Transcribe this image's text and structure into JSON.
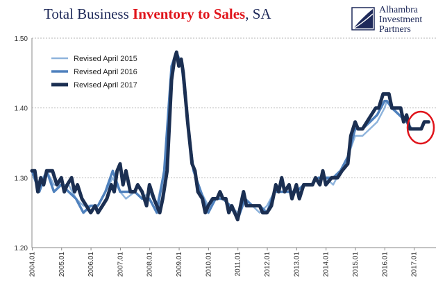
{
  "chart_data": {
    "type": "line",
    "title_parts": {
      "pre": "Total Business ",
      "highlight": "Inventory to Sales",
      "post": ", SA"
    },
    "xlabel": "",
    "ylabel": "",
    "ylim": [
      1.2,
      1.5
    ],
    "yticks": [
      "1.20",
      "1.30",
      "1.40",
      "1.50"
    ],
    "xticks": [
      "2004.01",
      "2005.01",
      "2006.01",
      "2007.01",
      "2008.01",
      "2009.01",
      "2010.01",
      "2011.01",
      "2012.01",
      "2013.01",
      "2014.01",
      "2015.01",
      "2016.01",
      "2017.01"
    ],
    "xlim": [
      2004.0,
      2017.75
    ],
    "grid": "horizontal dashed",
    "legend_position": "top-left",
    "annotation": "red circle around latest 2017 values",
    "series": [
      {
        "name": "Revised April 2015",
        "color": "#8fb4dc",
        "width": 2.5,
        "points": [
          [
            2004.0,
            1.31
          ],
          [
            2004.25,
            1.29
          ],
          [
            2004.5,
            1.31
          ],
          [
            2004.75,
            1.29
          ],
          [
            2005.0,
            1.29
          ],
          [
            2005.25,
            1.29
          ],
          [
            2005.5,
            1.27
          ],
          [
            2005.75,
            1.26
          ],
          [
            2006.0,
            1.26
          ],
          [
            2006.25,
            1.26
          ],
          [
            2006.5,
            1.28
          ],
          [
            2006.75,
            1.3
          ],
          [
            2007.0,
            1.28
          ],
          [
            2007.2,
            1.27
          ],
          [
            2007.5,
            1.28
          ],
          [
            2007.75,
            1.27
          ],
          [
            2008.0,
            1.28
          ],
          [
            2008.25,
            1.26
          ],
          [
            2008.5,
            1.31
          ],
          [
            2008.75,
            1.46
          ],
          [
            2008.92,
            1.48
          ],
          [
            2009.1,
            1.46
          ],
          [
            2009.3,
            1.38
          ],
          [
            2009.5,
            1.31
          ],
          [
            2009.75,
            1.28
          ],
          [
            2010.0,
            1.26
          ],
          [
            2010.25,
            1.27
          ],
          [
            2010.5,
            1.27
          ],
          [
            2010.75,
            1.26
          ],
          [
            2011.0,
            1.25
          ],
          [
            2011.25,
            1.27
          ],
          [
            2011.5,
            1.26
          ],
          [
            2011.75,
            1.25
          ],
          [
            2012.0,
            1.26
          ],
          [
            2012.25,
            1.28
          ],
          [
            2012.5,
            1.28
          ],
          [
            2012.75,
            1.28
          ],
          [
            2013.0,
            1.28
          ],
          [
            2013.25,
            1.29
          ],
          [
            2013.5,
            1.29
          ],
          [
            2013.75,
            1.3
          ],
          [
            2014.0,
            1.3
          ],
          [
            2014.25,
            1.29
          ],
          [
            2014.5,
            1.31
          ],
          [
            2014.75,
            1.33
          ],
          [
            2015.0,
            1.36
          ],
          [
            2015.25,
            1.36
          ],
          [
            2015.5,
            1.37
          ],
          [
            2015.75,
            1.38
          ],
          [
            2016.0,
            1.4
          ],
          [
            2016.08,
            1.41
          ],
          [
            2016.25,
            1.4
          ],
          [
            2016.5,
            1.39
          ],
          [
            2016.75,
            1.38
          ],
          [
            2016.83,
            1.37
          ]
        ]
      },
      {
        "name": "Revised April 2016",
        "color": "#4f81bd",
        "width": 3.5,
        "points": [
          [
            2004.0,
            1.31
          ],
          [
            2004.25,
            1.28
          ],
          [
            2004.5,
            1.31
          ],
          [
            2004.75,
            1.28
          ],
          [
            2005.0,
            1.29
          ],
          [
            2005.25,
            1.28
          ],
          [
            2005.5,
            1.27
          ],
          [
            2005.75,
            1.25
          ],
          [
            2006.0,
            1.26
          ],
          [
            2006.25,
            1.26
          ],
          [
            2006.5,
            1.28
          ],
          [
            2006.75,
            1.31
          ],
          [
            2007.0,
            1.28
          ],
          [
            2007.25,
            1.28
          ],
          [
            2007.5,
            1.28
          ],
          [
            2007.75,
            1.27
          ],
          [
            2008.0,
            1.27
          ],
          [
            2008.25,
            1.25
          ],
          [
            2008.5,
            1.31
          ],
          [
            2008.75,
            1.46
          ],
          [
            2008.92,
            1.48
          ],
          [
            2009.1,
            1.46
          ],
          [
            2009.3,
            1.38
          ],
          [
            2009.5,
            1.31
          ],
          [
            2009.75,
            1.28
          ],
          [
            2010.0,
            1.25
          ],
          [
            2010.25,
            1.27
          ],
          [
            2010.5,
            1.27
          ],
          [
            2010.75,
            1.26
          ],
          [
            2011.0,
            1.24
          ],
          [
            2011.25,
            1.27
          ],
          [
            2011.5,
            1.26
          ],
          [
            2011.75,
            1.26
          ],
          [
            2012.0,
            1.25
          ],
          [
            2012.25,
            1.28
          ],
          [
            2012.5,
            1.28
          ],
          [
            2012.75,
            1.28
          ],
          [
            2013.0,
            1.28
          ],
          [
            2013.25,
            1.29
          ],
          [
            2013.5,
            1.29
          ],
          [
            2013.75,
            1.3
          ],
          [
            2014.0,
            1.3
          ],
          [
            2014.25,
            1.3
          ],
          [
            2014.5,
            1.31
          ],
          [
            2014.75,
            1.33
          ],
          [
            2015.0,
            1.37
          ],
          [
            2015.25,
            1.37
          ],
          [
            2015.5,
            1.38
          ],
          [
            2015.75,
            1.39
          ],
          [
            2016.0,
            1.41
          ],
          [
            2016.08,
            1.41
          ],
          [
            2016.25,
            1.4
          ],
          [
            2016.5,
            1.39
          ],
          [
            2016.75,
            1.38
          ],
          [
            2016.92,
            1.37
          ]
        ]
      },
      {
        "name": "Revised April 2017",
        "color": "#1b2f52",
        "width": 5,
        "points": [
          [
            2004.0,
            1.31
          ],
          [
            2004.1,
            1.31
          ],
          [
            2004.2,
            1.28
          ],
          [
            2004.3,
            1.3
          ],
          [
            2004.4,
            1.29
          ],
          [
            2004.5,
            1.31
          ],
          [
            2004.7,
            1.31
          ],
          [
            2004.85,
            1.29
          ],
          [
            2005.0,
            1.3
          ],
          [
            2005.1,
            1.28
          ],
          [
            2005.2,
            1.29
          ],
          [
            2005.35,
            1.3
          ],
          [
            2005.45,
            1.28
          ],
          [
            2005.55,
            1.29
          ],
          [
            2005.7,
            1.27
          ],
          [
            2005.85,
            1.26
          ],
          [
            2006.0,
            1.25
          ],
          [
            2006.15,
            1.26
          ],
          [
            2006.25,
            1.25
          ],
          [
            2006.4,
            1.26
          ],
          [
            2006.55,
            1.27
          ],
          [
            2006.7,
            1.29
          ],
          [
            2006.8,
            1.28
          ],
          [
            2006.9,
            1.31
          ],
          [
            2007.0,
            1.32
          ],
          [
            2007.1,
            1.29
          ],
          [
            2007.2,
            1.31
          ],
          [
            2007.35,
            1.28
          ],
          [
            2007.5,
            1.28
          ],
          [
            2007.6,
            1.29
          ],
          [
            2007.75,
            1.28
          ],
          [
            2007.9,
            1.26
          ],
          [
            2008.0,
            1.29
          ],
          [
            2008.15,
            1.27
          ],
          [
            2008.35,
            1.25
          ],
          [
            2008.45,
            1.27
          ],
          [
            2008.6,
            1.31
          ],
          [
            2008.75,
            1.44
          ],
          [
            2008.85,
            1.47
          ],
          [
            2008.92,
            1.48
          ],
          [
            2009.0,
            1.46
          ],
          [
            2009.08,
            1.47
          ],
          [
            2009.15,
            1.45
          ],
          [
            2009.3,
            1.38
          ],
          [
            2009.45,
            1.32
          ],
          [
            2009.55,
            1.31
          ],
          [
            2009.65,
            1.28
          ],
          [
            2009.8,
            1.27
          ],
          [
            2009.9,
            1.25
          ],
          [
            2010.0,
            1.26
          ],
          [
            2010.15,
            1.27
          ],
          [
            2010.3,
            1.27
          ],
          [
            2010.4,
            1.28
          ],
          [
            2010.5,
            1.27
          ],
          [
            2010.6,
            1.27
          ],
          [
            2010.7,
            1.25
          ],
          [
            2010.8,
            1.26
          ],
          [
            2010.9,
            1.25
          ],
          [
            2011.0,
            1.24
          ],
          [
            2011.1,
            1.26
          ],
          [
            2011.2,
            1.28
          ],
          [
            2011.3,
            1.26
          ],
          [
            2011.45,
            1.26
          ],
          [
            2011.6,
            1.26
          ],
          [
            2011.75,
            1.26
          ],
          [
            2011.85,
            1.25
          ],
          [
            2012.0,
            1.25
          ],
          [
            2012.15,
            1.26
          ],
          [
            2012.3,
            1.29
          ],
          [
            2012.4,
            1.28
          ],
          [
            2012.5,
            1.3
          ],
          [
            2012.6,
            1.28
          ],
          [
            2012.75,
            1.29
          ],
          [
            2012.85,
            1.27
          ],
          [
            2013.0,
            1.29
          ],
          [
            2013.1,
            1.27
          ],
          [
            2013.25,
            1.29
          ],
          [
            2013.4,
            1.29
          ],
          [
            2013.55,
            1.29
          ],
          [
            2013.65,
            1.3
          ],
          [
            2013.8,
            1.29
          ],
          [
            2013.9,
            1.31
          ],
          [
            2014.0,
            1.29
          ],
          [
            2014.2,
            1.3
          ],
          [
            2014.4,
            1.3
          ],
          [
            2014.55,
            1.31
          ],
          [
            2014.75,
            1.32
          ],
          [
            2014.85,
            1.36
          ],
          [
            2015.0,
            1.38
          ],
          [
            2015.1,
            1.37
          ],
          [
            2015.25,
            1.37
          ],
          [
            2015.4,
            1.38
          ],
          [
            2015.55,
            1.39
          ],
          [
            2015.7,
            1.4
          ],
          [
            2015.8,
            1.4
          ],
          [
            2015.95,
            1.42
          ],
          [
            2016.15,
            1.42
          ],
          [
            2016.25,
            1.4
          ],
          [
            2016.45,
            1.4
          ],
          [
            2016.55,
            1.4
          ],
          [
            2016.65,
            1.38
          ],
          [
            2016.75,
            1.39
          ],
          [
            2016.85,
            1.37
          ],
          [
            2017.0,
            1.37
          ],
          [
            2017.25,
            1.37
          ],
          [
            2017.35,
            1.38
          ],
          [
            2017.5,
            1.38
          ]
        ]
      }
    ]
  },
  "logo": {
    "line1": "Alhambra",
    "line2": "Investment",
    "line3": "Partners"
  }
}
